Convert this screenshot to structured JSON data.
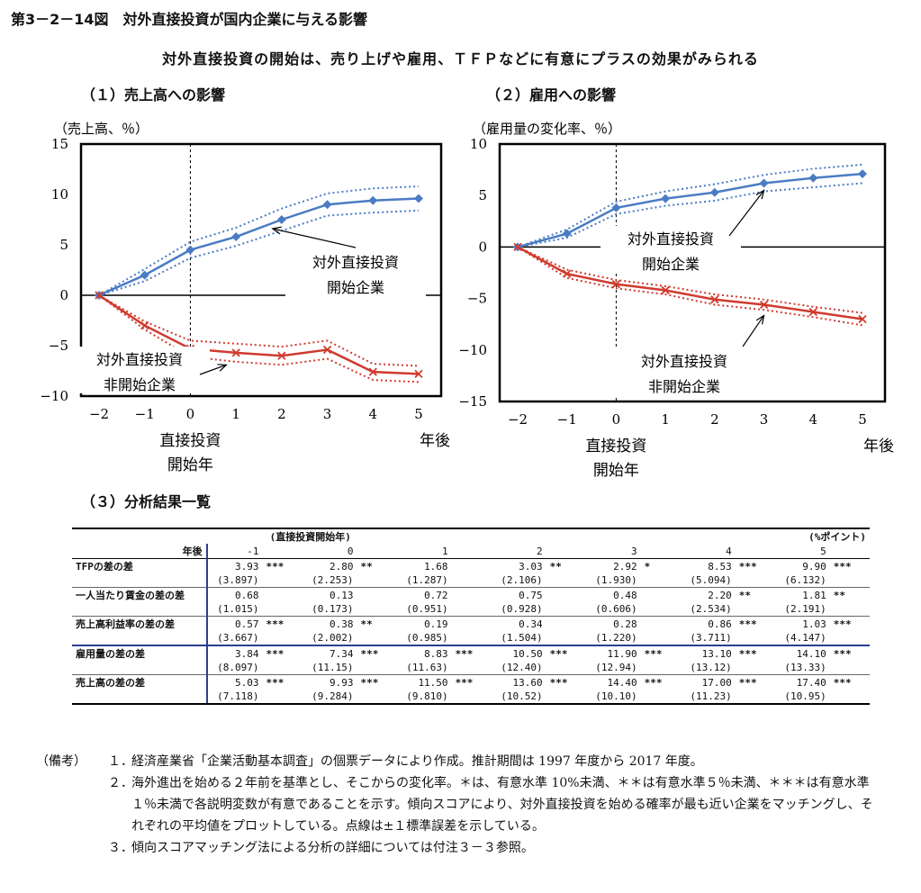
{
  "figure_title": "第3－2－14図　対外直接投資が国内企業に与える影響",
  "subtitle": "対外直接投資の開始は、売り上げや雇用、ＴＦＰなどに有意にプラスの効果がみられる",
  "chart_data": [
    {
      "type": "line",
      "panel_label": "（１）売上高への影響",
      "ylabel": "（売上高、％）",
      "x": [
        -2,
        -1,
        0,
        1,
        2,
        3,
        4,
        5
      ],
      "xticks": [
        "−2",
        "−1",
        "0",
        "1",
        "2",
        "3",
        "4",
        "5"
      ],
      "ylim": [
        -10,
        15
      ],
      "yticks": [
        15,
        10,
        5,
        0,
        -5,
        -10
      ],
      "ytick_labels": [
        "15",
        "10",
        "5",
        "0",
        "−5",
        "−10"
      ],
      "xlabel_start": [
        "直接投資",
        "開始年"
      ],
      "xlabel_end": "年後",
      "series": [
        {
          "name": "対外直接投資開始企業",
          "label_lines": [
            "対外直接投資",
            "開始企業"
          ],
          "color": "#4a7cc4",
          "marker": "diamond",
          "values": [
            0,
            2.0,
            4.5,
            5.8,
            7.5,
            9.0,
            9.4,
            9.6
          ],
          "upper": [
            0,
            2.6,
            5.3,
            6.7,
            8.6,
            10.1,
            10.6,
            10.8
          ],
          "lower": [
            0,
            1.4,
            3.7,
            4.9,
            6.4,
            7.9,
            8.2,
            8.4
          ]
        },
        {
          "name": "対外直接投資非開始企業",
          "label_lines": [
            "対外直接投資",
            "非開始企業"
          ],
          "color": "#d03a2e",
          "marker": "x",
          "values": [
            0,
            -3.0,
            -5.3,
            -5.7,
            -6.0,
            -5.4,
            -7.6,
            -7.8
          ],
          "upper": [
            0,
            -2.6,
            -4.5,
            -4.8,
            -5.1,
            -4.5,
            -6.8,
            -7.0
          ],
          "lower": [
            0,
            -3.4,
            -6.1,
            -6.6,
            -6.9,
            -6.3,
            -8.4,
            -8.6
          ]
        }
      ]
    },
    {
      "type": "line",
      "panel_label": "（２）雇用への影響",
      "ylabel": "（雇用量の変化率、％）",
      "x": [
        -2,
        -1,
        0,
        1,
        2,
        3,
        4,
        5
      ],
      "xticks": [
        "−2",
        "−1",
        "0",
        "1",
        "2",
        "3",
        "4",
        "5"
      ],
      "ylim": [
        -15,
        10
      ],
      "yticks": [
        10,
        5,
        0,
        -5,
        -10,
        -15
      ],
      "ytick_labels": [
        "10",
        "5",
        "0",
        "−5",
        "−10",
        "−15"
      ],
      "xlabel_start": [
        "直接投資",
        "開始年"
      ],
      "xlabel_end": "年後",
      "series": [
        {
          "name": "対外直接投資開始企業",
          "label_lines": [
            "対外直接投資",
            "開始企業"
          ],
          "color": "#4a7cc4",
          "marker": "diamond",
          "values": [
            0,
            1.3,
            3.8,
            4.7,
            5.3,
            6.2,
            6.7,
            7.1
          ],
          "upper": [
            0,
            1.7,
            4.4,
            5.4,
            6.1,
            7.0,
            7.6,
            8.0
          ],
          "lower": [
            0,
            0.9,
            3.2,
            4.0,
            4.5,
            5.4,
            5.8,
            6.2
          ],
          "label_anchor": [
            0.8,
            -1.4
          ],
          "arrow_target": 3
        },
        {
          "name": "対外直接投資非開始企業",
          "label_lines": [
            "対外直接投資",
            "非開始企業"
          ],
          "color": "#d03a2e",
          "marker": "x",
          "values": [
            0,
            -2.6,
            -3.6,
            -4.2,
            -5.1,
            -5.6,
            -6.3,
            -7.0
          ],
          "upper": [
            0,
            -2.2,
            -3.2,
            -3.8,
            -4.6,
            -5.1,
            -5.8,
            -6.4
          ],
          "lower": [
            0,
            -3.0,
            -4.0,
            -4.6,
            -5.6,
            -6.1,
            -6.8,
            -7.6
          ]
        }
      ]
    },
    {
      "type": "table",
      "panel_label": "（３）分析結果一覧",
      "group_header": "(直接投資開始年)",
      "unit": "(%ポイント)",
      "row_header": "年後",
      "columns": [
        "-1",
        "0",
        "1",
        "2",
        "3",
        "4",
        "5"
      ],
      "rows": [
        {
          "label": "TFPの差の差",
          "values": [
            "3.93",
            "2.80",
            "1.68",
            "3.03",
            "2.92",
            "8.53",
            "9.90"
          ],
          "stars": [
            "***",
            "**",
            "",
            "**",
            "*",
            "***",
            "***"
          ],
          "se": [
            "(3.897)",
            "(2.253)",
            "(1.287)",
            "(2.106)",
            "(1.930)",
            "(5.094)",
            "(6.132)"
          ]
        },
        {
          "label": "一人当たり賃金の差の差",
          "values": [
            "0.68",
            "0.13",
            "0.72",
            "0.75",
            "0.48",
            "2.20",
            "1.81"
          ],
          "stars": [
            "",
            "",
            "",
            "",
            "",
            "**",
            "**"
          ],
          "se": [
            "(1.015)",
            "(0.173)",
            "(0.951)",
            "(0.928)",
            "(0.606)",
            "(2.534)",
            "(2.191)"
          ]
        },
        {
          "label": "売上高利益率の差の差",
          "values": [
            "0.57",
            "0.38",
            "0.19",
            "0.34",
            "0.28",
            "0.86",
            "1.03"
          ],
          "stars": [
            "***",
            "**",
            "",
            "",
            "",
            "***",
            "***"
          ],
          "se": [
            "(3.667)",
            "(2.002)",
            "(0.985)",
            "(1.504)",
            "(1.220)",
            "(3.711)",
            "(4.147)"
          ]
        },
        {
          "label": "雇用量の差の差",
          "values": [
            "3.84",
            "7.34",
            "8.83",
            "10.50",
            "11.90",
            "13.10",
            "14.10"
          ],
          "stars": [
            "***",
            "***",
            "***",
            "***",
            "***",
            "***",
            "***"
          ],
          "se": [
            "(8.097)",
            "(11.15)",
            "(11.63)",
            "(12.40)",
            "(12.94)",
            "(13.12)",
            "(13.33)"
          ]
        },
        {
          "label": "売上高の差の差",
          "values": [
            "5.03",
            "9.93",
            "11.50",
            "13.60",
            "14.40",
            "17.00",
            "17.40"
          ],
          "stars": [
            "***",
            "***",
            "***",
            "***",
            "***",
            "***",
            "***"
          ],
          "se": [
            "(7.118)",
            "(9.284)",
            "(9.810)",
            "(10.52)",
            "(10.10)",
            "(11.23)",
            "(10.95)"
          ]
        }
      ]
    }
  ],
  "notes": {
    "label": "（備考）",
    "items": [
      {
        "num": "１．",
        "text": "経済産業省「企業活動基本調査」の個票データにより作成。推計期間は 1997 年度から 2017 年度。"
      },
      {
        "num": "２．",
        "text": "海外進出を始める２年前を基準とし、そこからの変化率。＊は、有意水準 10%未満、＊＊は有意水準５％未満、＊＊＊は有意水準１％未満で各説明変数が有意であることを示す。傾向スコアにより、対外直接投資を始める確率が最も近い企業をマッチングし、それぞれの平均値をプロットしている。点線は±１標準誤差を示している。"
      },
      {
        "num": "３．",
        "text": "傾向スコアマッチング法による分析の詳細については付注３－３参照。"
      }
    ]
  }
}
